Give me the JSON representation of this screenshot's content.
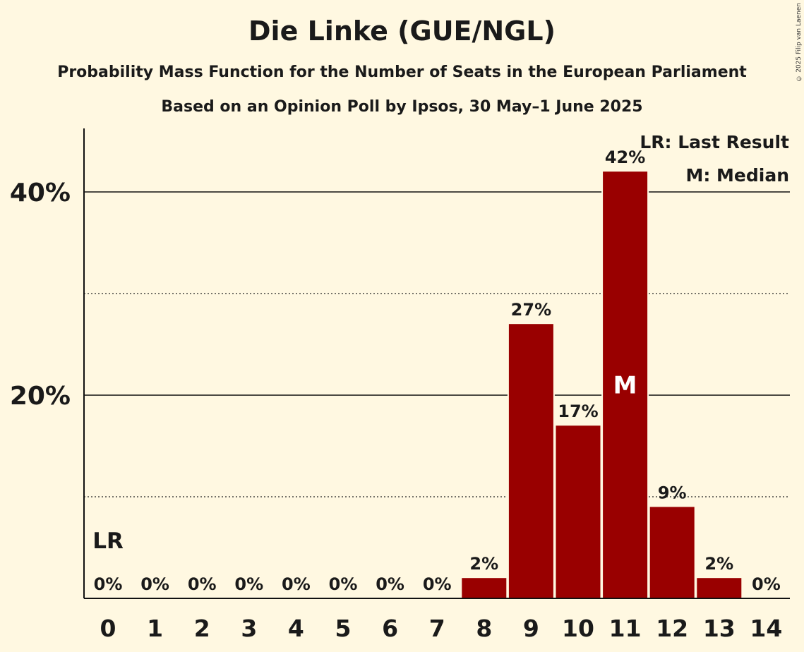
{
  "header": {
    "title": "Die Linke (GUE/NGL)",
    "subtitle": "Probability Mass Function for the Number of Seats in the European Parliament",
    "subtitle2": "Based on an Opinion Poll by Ipsos, 30 May–1 June 2025",
    "copyright": "© 2025 Filip van Laenen"
  },
  "legend": {
    "lr": "LR: Last Result",
    "m": "M: Median"
  },
  "colors": {
    "bar": "#990000",
    "background": "#fff8e1"
  },
  "chart_data": {
    "type": "bar",
    "title": "Die Linke (GUE/NGL)",
    "xlabel": "",
    "ylabel": "",
    "categories": [
      "0",
      "1",
      "2",
      "3",
      "4",
      "5",
      "6",
      "7",
      "8",
      "9",
      "10",
      "11",
      "12",
      "13",
      "14"
    ],
    "values": [
      0,
      0,
      0,
      0,
      0,
      0,
      0,
      0,
      2,
      27,
      17,
      42,
      9,
      2,
      0
    ],
    "value_labels": [
      "0%",
      "0%",
      "0%",
      "0%",
      "0%",
      "0%",
      "0%",
      "0%",
      "2%",
      "27%",
      "17%",
      "42%",
      "9%",
      "2%",
      "0%"
    ],
    "ylim": [
      0,
      46
    ],
    "yticks": [
      20,
      40
    ],
    "ytick_labels": [
      "20%",
      "40%"
    ],
    "minor_gridlines": [
      10,
      30
    ],
    "last_result_seat": "0",
    "last_result_label": "LR",
    "median_seat": "11",
    "median_label": "M",
    "legend_position": "top-right"
  }
}
